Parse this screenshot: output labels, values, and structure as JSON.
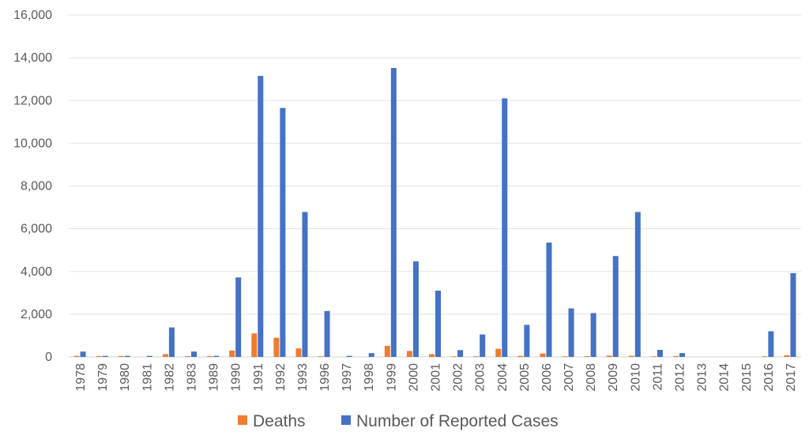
{
  "chart_data": {
    "type": "bar",
    "title": "",
    "xlabel": "",
    "ylabel": "",
    "ylim": [
      0,
      16000
    ],
    "y_ticks": [
      "0",
      "2,000",
      "4,000",
      "6,000",
      "8,000",
      "10,000",
      "12,000",
      "14,000",
      "16,000"
    ],
    "grid": "horizontal",
    "legend_position": "bottom",
    "categories": [
      "1978",
      "1979",
      "1980",
      "1981",
      "1982",
      "1983",
      "1989",
      "1990",
      "1991",
      "1992",
      "1993",
      "1996",
      "1997",
      "1998",
      "1999",
      "2000",
      "2001",
      "2002",
      "2003",
      "2004",
      "2005",
      "2006",
      "2007",
      "2008",
      "2009",
      "2010",
      "2011",
      "2012",
      "2013",
      "2014",
      "2015",
      "2016",
      "2017"
    ],
    "series": [
      {
        "name": "Deaths",
        "color": "#ED7D31",
        "values": [
          50,
          40,
          40,
          0,
          130,
          40,
          40,
          300,
          1100,
          900,
          400,
          30,
          0,
          0,
          520,
          280,
          130,
          30,
          30,
          380,
          50,
          160,
          30,
          40,
          60,
          50,
          30,
          40,
          0,
          0,
          0,
          30,
          80
        ]
      },
      {
        "name": "Number of Reported Cases",
        "color": "#4472C4",
        "values": [
          250,
          50,
          50,
          50,
          1380,
          250,
          50,
          3720,
          13150,
          11650,
          6780,
          2150,
          50,
          180,
          13520,
          4470,
          3100,
          320,
          1050,
          12100,
          1500,
          5350,
          2270,
          2050,
          4720,
          6780,
          330,
          180,
          0,
          0,
          0,
          1200,
          3920
        ]
      }
    ]
  }
}
